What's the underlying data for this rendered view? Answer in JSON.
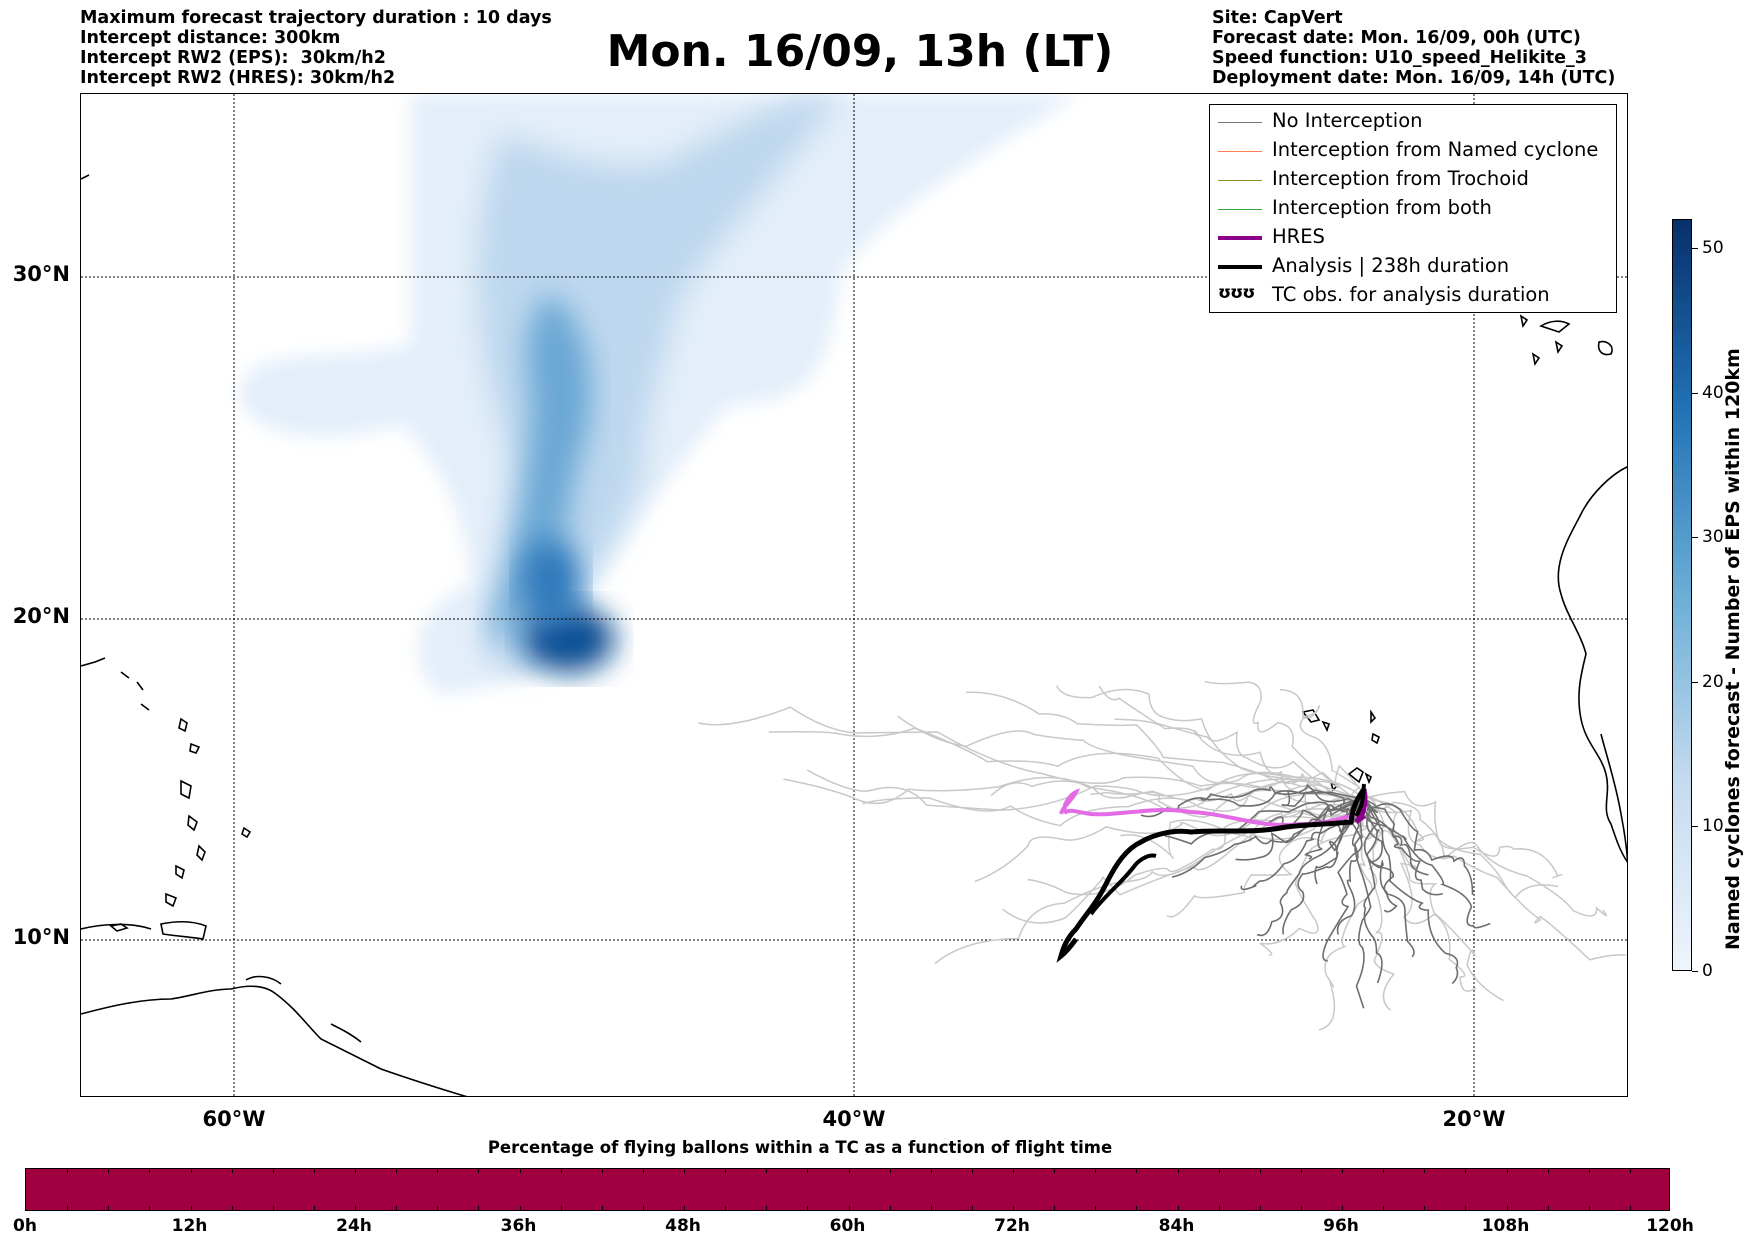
{
  "header": {
    "info_left": [
      "Maximum forecast trajectory duration : 10 days",
      "Intercept distance: 300km",
      "Intercept RW2 (EPS):  30km/h2",
      "Intercept RW2 (HRES): 30km/h2"
    ],
    "title": "Mon. 16/09, 13h (LT)",
    "info_right": [
      "Site: CapVert",
      "Forecast date: Mon. 16/09, 00h (UTC)",
      "Speed function: U10_speed_Helikite_3",
      "Deployment date: Mon. 16/09, 14h (UTC)"
    ]
  },
  "map": {
    "lat_labels": [
      "30°N",
      "20°N",
      "10°N"
    ],
    "lon_labels": [
      "60°W",
      "40°W",
      "20°W"
    ],
    "gridlines": "dotted",
    "deployment_site": "Cape Verde islands",
    "fields": [
      "Named cyclone EPS density (shaded blue)",
      "trajectory ensemble"
    ]
  },
  "legend": {
    "items": [
      {
        "label": "No Interception",
        "color": "#777777",
        "style": "thin"
      },
      {
        "label": "Interception from Named cyclone",
        "color": "#ff7f50",
        "style": "thin"
      },
      {
        "label": "Interception from Trochoid",
        "color": "#8b8b2a",
        "style": "thin"
      },
      {
        "label": "Interception from both",
        "color": "#3aa63a",
        "style": "thin"
      },
      {
        "label": "HRES",
        "color": "#8b008b",
        "style": "thick"
      },
      {
        "label": "Analysis | 238h duration",
        "color": "#000000",
        "style": "thick"
      },
      {
        "label": "TC obs. for analysis duration",
        "color": "#000000",
        "style": "symbol",
        "symbol": "ooo-icon"
      }
    ]
  },
  "colorbar": {
    "title": "Named cyclones forecast - Number of EPS within 120km",
    "ticks": [
      "0",
      "10",
      "20",
      "30",
      "40",
      "50"
    ],
    "range": [
      0,
      52
    ],
    "colors": [
      "#eef5fc",
      "#c6dbef",
      "#6baed6",
      "#2171b5",
      "#08306b"
    ]
  },
  "bottom_bar": {
    "title": "Percentage of flying ballons within a TC as a function of flight time",
    "ticks": [
      "0h",
      "12h",
      "24h",
      "36h",
      "48h",
      "60h",
      "72h",
      "84h",
      "96h",
      "108h",
      "120h"
    ],
    "fill_color": "#a0003f"
  }
}
